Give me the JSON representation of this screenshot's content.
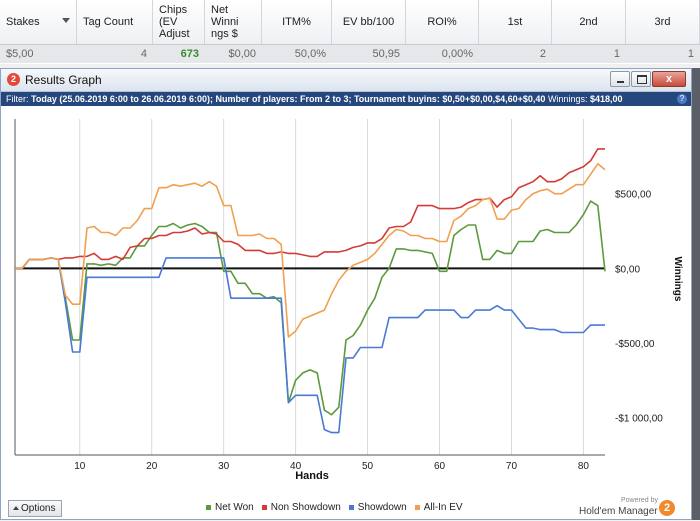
{
  "table": {
    "headers": [
      "Stakes",
      "Tag Count",
      "Chips\n(EV\nAdjust",
      "Net\nWinni\nngs $",
      "ITM%",
      "EV bb/100",
      "ROI%",
      "1st",
      "2nd",
      "3rd"
    ],
    "row": [
      "$5,00",
      "4",
      "673",
      "$0,00",
      "50,0%",
      "50,95",
      "0,00%",
      "2",
      "1",
      "1"
    ]
  },
  "window": {
    "title": "Results Graph",
    "app_icon": "2",
    "close_glyph": "x"
  },
  "filter": {
    "label": "Filter:",
    "text": "Today (25.06.2019 6:00 to 26.06.2019 6:00); Number of players: From 2 to 3; Tournament buyins: $0,50+$0,00,$4,60+$0,40",
    "winnings_label": "Winnings:",
    "winnings_value": "$418,00",
    "help_glyph": "?"
  },
  "chart_data": {
    "type": "line",
    "xlabel": "Hands",
    "ylabel": "Winnings",
    "xlim": [
      1,
      83
    ],
    "ylim": [
      -1250,
      1000
    ],
    "x_ticks": [
      10,
      20,
      30,
      40,
      50,
      60,
      70,
      80
    ],
    "y_ticks": [
      500,
      0,
      -500,
      -1000
    ],
    "y_tick_labels": [
      "$500,00",
      "$0,00",
      "-$500,00",
      "-$1 000,00"
    ],
    "grid": "vertical",
    "legend_position": "bottom",
    "x": [
      1,
      2,
      3,
      4,
      5,
      6,
      7,
      8,
      9,
      10,
      11,
      12,
      13,
      14,
      15,
      16,
      17,
      18,
      19,
      20,
      21,
      22,
      23,
      24,
      25,
      26,
      27,
      28,
      29,
      30,
      31,
      32,
      33,
      34,
      35,
      36,
      37,
      38,
      39,
      40,
      41,
      42,
      43,
      44,
      45,
      46,
      47,
      48,
      49,
      50,
      51,
      52,
      53,
      54,
      55,
      56,
      57,
      58,
      59,
      60,
      61,
      62,
      63,
      64,
      65,
      66,
      67,
      68,
      69,
      70,
      71,
      72,
      73,
      74,
      75,
      76,
      77,
      78,
      79,
      80,
      81,
      82,
      83
    ],
    "series": [
      {
        "name": "Net Won",
        "color": "#5c9a3c",
        "values": [
          0,
          0,
          60,
          60,
          60,
          70,
          60,
          -200,
          -480,
          -480,
          30,
          30,
          20,
          30,
          20,
          70,
          70,
          150,
          150,
          220,
          280,
          280,
          300,
          270,
          290,
          300,
          280,
          240,
          240,
          -20,
          -20,
          -100,
          -100,
          -170,
          -170,
          -200,
          -190,
          -230,
          -900,
          -750,
          -700,
          -680,
          -700,
          -950,
          -980,
          -930,
          -480,
          -450,
          -380,
          -280,
          -200,
          -60,
          0,
          130,
          130,
          120,
          120,
          110,
          100,
          -20,
          -20,
          220,
          260,
          290,
          290,
          60,
          60,
          120,
          100,
          100,
          180,
          180,
          180,
          250,
          260,
          240,
          240,
          240,
          290,
          360,
          450,
          420,
          -20
        ]
      },
      {
        "name": "Non Showdown",
        "color": "#d43b36",
        "values": [
          0,
          0,
          60,
          60,
          60,
          70,
          60,
          70,
          70,
          80,
          80,
          100,
          60,
          60,
          80,
          60,
          140,
          150,
          200,
          200,
          220,
          220,
          240,
          240,
          250,
          270,
          230,
          240,
          230,
          180,
          180,
          160,
          120,
          120,
          120,
          100,
          100,
          110,
          100,
          100,
          90,
          80,
          80,
          110,
          110,
          110,
          120,
          140,
          150,
          170,
          170,
          200,
          270,
          280,
          280,
          310,
          420,
          420,
          420,
          400,
          400,
          400,
          410,
          440,
          460,
          460,
          470,
          410,
          460,
          480,
          540,
          560,
          580,
          620,
          580,
          580,
          600,
          640,
          660,
          680,
          720,
          800,
          800
        ]
      },
      {
        "name": "Showdown",
        "color": "#4a79d6",
        "values": [
          0,
          0,
          60,
          60,
          60,
          70,
          60,
          -230,
          -560,
          -560,
          -60,
          -60,
          -60,
          -60,
          -60,
          -60,
          -60,
          -60,
          -60,
          -60,
          -60,
          70,
          70,
          70,
          70,
          70,
          70,
          70,
          70,
          70,
          -200,
          -200,
          -200,
          -200,
          -200,
          -200,
          -200,
          -200,
          -900,
          -850,
          -850,
          -850,
          -850,
          -1080,
          -1100,
          -1100,
          -600,
          -600,
          -530,
          -530,
          -530,
          -530,
          -330,
          -330,
          -330,
          -330,
          -330,
          -280,
          -280,
          -280,
          -280,
          -280,
          -330,
          -330,
          -280,
          -280,
          -280,
          -250,
          -280,
          -280,
          -340,
          -400,
          -400,
          -410,
          -410,
          -410,
          -430,
          -430,
          -430,
          -430,
          -380,
          -380,
          -380
        ]
      },
      {
        "name": "All-In EV",
        "color": "#f0a050",
        "values": [
          0,
          0,
          60,
          60,
          60,
          70,
          60,
          -180,
          -240,
          -240,
          270,
          280,
          240,
          240,
          220,
          270,
          270,
          320,
          400,
          400,
          540,
          540,
          560,
          550,
          560,
          570,
          550,
          580,
          550,
          420,
          420,
          220,
          220,
          220,
          230,
          200,
          200,
          160,
          -460,
          -420,
          -340,
          -320,
          -300,
          -280,
          -170,
          -80,
          -20,
          20,
          40,
          60,
          100,
          160,
          220,
          260,
          250,
          220,
          220,
          200,
          200,
          180,
          180,
          320,
          350,
          400,
          420,
          460,
          470,
          330,
          330,
          390,
          400,
          460,
          500,
          520,
          530,
          500,
          500,
          530,
          560,
          560,
          630,
          700,
          660
        ]
      }
    ]
  },
  "options_label": "Options",
  "brand": {
    "powered_by": "Powered by",
    "name": "Hold'em Manager",
    "logo": "2"
  }
}
